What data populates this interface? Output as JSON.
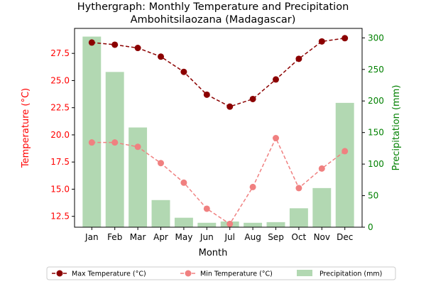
{
  "chart_data": {
    "type": "bar+line",
    "title_line1": "Hythergraph: Monthly Temperature and Precipitation",
    "title_line2": "Ambohitsilaozana (Madagascar)",
    "xlabel": "Month",
    "ylabel_left": "Temperature (°C)",
    "ylabel_right": "Precipitation (mm)",
    "categories": [
      "Jan",
      "Feb",
      "Mar",
      "Apr",
      "May",
      "Jun",
      "Jul",
      "Aug",
      "Sep",
      "Oct",
      "Nov",
      "Dec"
    ],
    "ylim_left": [
      11.5,
      29.8
    ],
    "yticks_left": [
      12.5,
      15.0,
      17.5,
      20.0,
      22.5,
      25.0,
      27.5
    ],
    "ylim_right": [
      0,
      315
    ],
    "yticks_right": [
      0,
      50,
      100,
      150,
      200,
      250,
      300
    ],
    "series": [
      {
        "name": "Max Temperature (°C)",
        "kind": "line",
        "axis": "left",
        "color": "#8b0000",
        "values": [
          28.5,
          28.3,
          28.0,
          27.2,
          25.8,
          23.7,
          22.6,
          23.3,
          25.1,
          27.0,
          28.6,
          28.9
        ]
      },
      {
        "name": "Min Temperature (°C)",
        "kind": "line",
        "axis": "left",
        "color": "#f08080",
        "values": [
          19.3,
          19.3,
          18.9,
          17.4,
          15.6,
          13.2,
          11.8,
          15.2,
          19.7,
          15.1,
          16.9,
          18.5
        ]
      },
      {
        "name": "Precipitation (mm)",
        "kind": "bar",
        "axis": "right",
        "color": "#b2d8b2",
        "values": [
          302,
          246,
          158,
          43,
          15,
          7,
          9,
          7,
          8,
          30,
          62,
          197
        ]
      }
    ],
    "legend": "bottom-center"
  }
}
